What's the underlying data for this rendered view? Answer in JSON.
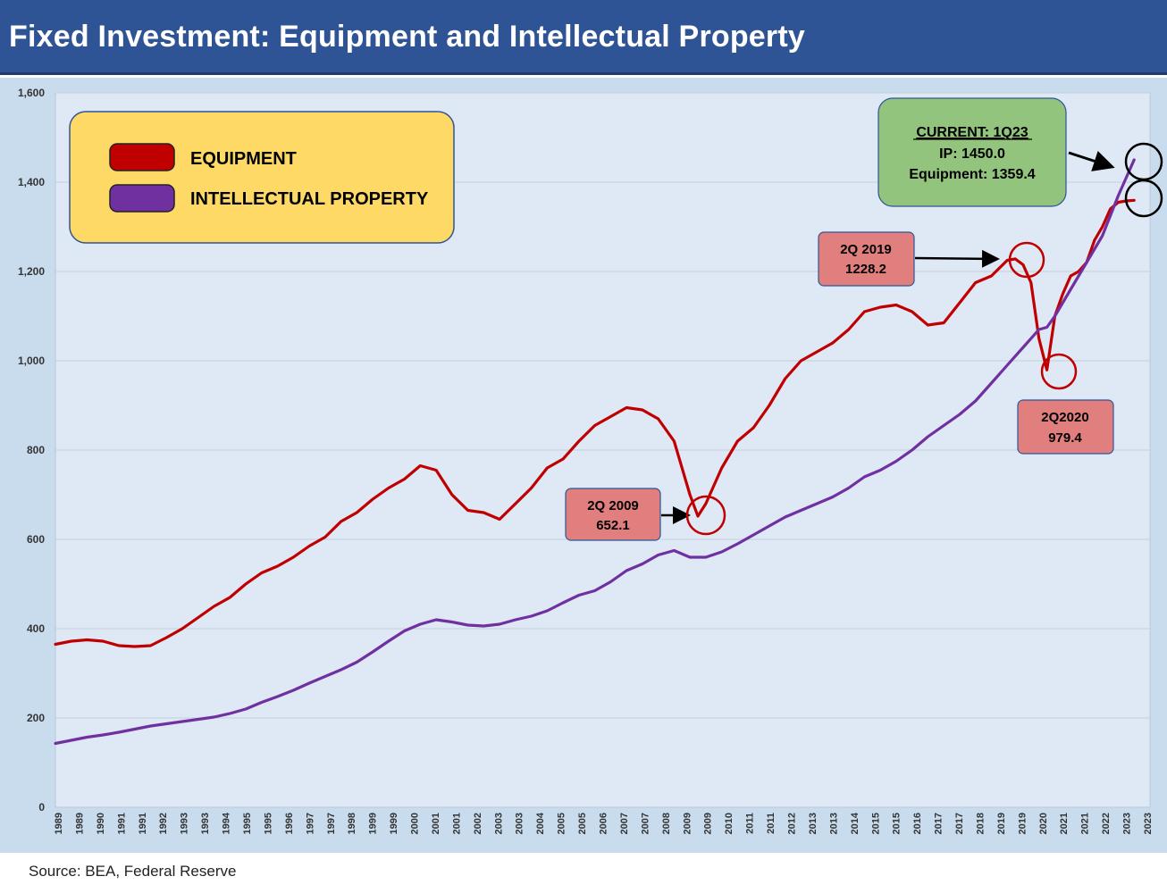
{
  "title": "Fixed Investment: Equipment and Intellectual Property",
  "source": "Source: BEA, Federal Reserve",
  "chart_data": {
    "type": "line",
    "title": "Fixed Investment: Equipment and Intellectual Property",
    "xlabel": "",
    "ylabel": "",
    "ylim": [
      0,
      1600
    ],
    "yticks": [
      "0",
      "200",
      "400",
      "600",
      "800",
      "1,000",
      "1,200",
      "1,400",
      "1,600"
    ],
    "xlim": [
      1989.0,
      2023.5
    ],
    "xticks": [
      "1989",
      "1989",
      "1990",
      "1991",
      "1991",
      "1992",
      "1993",
      "1993",
      "1994",
      "1995",
      "1995",
      "1996",
      "1997",
      "1997",
      "1998",
      "1999",
      "1999",
      "2000",
      "2001",
      "2001",
      "2002",
      "2003",
      "2003",
      "2004",
      "2005",
      "2005",
      "2006",
      "2007",
      "2007",
      "2008",
      "2009",
      "2009",
      "2010",
      "2011",
      "2011",
      "2012",
      "2013",
      "2013",
      "2014",
      "2015",
      "2015",
      "2016",
      "2017",
      "2017",
      "2018",
      "2019",
      "2019",
      "2020",
      "2021",
      "2021",
      "2022",
      "2023",
      "2023"
    ],
    "grid": true,
    "legend_placement": "top-left",
    "series": [
      {
        "name": "EQUIPMENT",
        "color": "#c00000",
        "x": [
          1989.0,
          1989.5,
          1990.0,
          1990.5,
          1991.0,
          1991.5,
          1992.0,
          1992.5,
          1993.0,
          1993.5,
          1994.0,
          1994.5,
          1995.0,
          1995.5,
          1996.0,
          1996.5,
          1997.0,
          1997.5,
          1998.0,
          1998.5,
          1999.0,
          1999.5,
          2000.0,
          2000.5,
          2001.0,
          2001.5,
          2002.0,
          2002.5,
          2003.0,
          2003.5,
          2004.0,
          2004.5,
          2005.0,
          2005.5,
          2006.0,
          2006.5,
          2007.0,
          2007.5,
          2008.0,
          2008.5,
          2009.0,
          2009.25,
          2009.5,
          2010.0,
          2010.5,
          2011.0,
          2011.5,
          2012.0,
          2012.5,
          2013.0,
          2013.5,
          2014.0,
          2014.5,
          2015.0,
          2015.5,
          2016.0,
          2016.5,
          2017.0,
          2017.5,
          2018.0,
          2018.5,
          2019.0,
          2019.25,
          2019.5,
          2019.75,
          2020.0,
          2020.25,
          2020.5,
          2020.75,
          2021.0,
          2021.25,
          2021.5,
          2021.75,
          2022.0,
          2022.25,
          2022.5,
          2022.75,
          2023.0
        ],
        "values": [
          365,
          372,
          375,
          372,
          362,
          360,
          362,
          380,
          400,
          425,
          450,
          470,
          500,
          525,
          540,
          560,
          585,
          605,
          640,
          660,
          690,
          715,
          735,
          765,
          755,
          700,
          665,
          660,
          645,
          680,
          715,
          760,
          780,
          820,
          855,
          875,
          895,
          890,
          870,
          820,
          700,
          652.1,
          680,
          760,
          820,
          850,
          900,
          960,
          1000,
          1020,
          1040,
          1070,
          1110,
          1120,
          1125,
          1110,
          1080,
          1085,
          1130,
          1175,
          1190,
          1225,
          1228.2,
          1215,
          1175,
          1050,
          979.4,
          1100,
          1150,
          1190,
          1200,
          1220,
          1270,
          1300,
          1340,
          1355,
          1358,
          1359.4
        ]
      },
      {
        "name": "INTELLECTUAL PROPERTY",
        "color": "#7030a0",
        "x": [
          1989.0,
          1989.5,
          1990.0,
          1990.5,
          1991.0,
          1991.5,
          1992.0,
          1992.5,
          1993.0,
          1993.5,
          1994.0,
          1994.5,
          1995.0,
          1995.5,
          1996.0,
          1996.5,
          1997.0,
          1997.5,
          1998.0,
          1998.5,
          1999.0,
          1999.5,
          2000.0,
          2000.5,
          2001.0,
          2001.5,
          2002.0,
          2002.5,
          2003.0,
          2003.5,
          2004.0,
          2004.5,
          2005.0,
          2005.5,
          2006.0,
          2006.5,
          2007.0,
          2007.5,
          2008.0,
          2008.5,
          2009.0,
          2009.5,
          2010.0,
          2010.5,
          2011.0,
          2011.5,
          2012.0,
          2012.5,
          2013.0,
          2013.5,
          2014.0,
          2014.5,
          2015.0,
          2015.5,
          2016.0,
          2016.5,
          2017.0,
          2017.5,
          2018.0,
          2018.5,
          2019.0,
          2019.5,
          2020.0,
          2020.25,
          2020.5,
          2021.0,
          2021.5,
          2022.0,
          2022.5,
          2023.0
        ],
        "values": [
          143,
          150,
          157,
          162,
          168,
          175,
          182,
          187,
          192,
          197,
          202,
          210,
          220,
          235,
          248,
          262,
          278,
          293,
          308,
          325,
          348,
          372,
          395,
          410,
          420,
          415,
          408,
          406,
          410,
          420,
          428,
          440,
          458,
          475,
          485,
          505,
          530,
          545,
          565,
          575,
          560,
          560,
          572,
          590,
          610,
          630,
          650,
          665,
          680,
          695,
          715,
          740,
          755,
          775,
          800,
          830,
          855,
          880,
          910,
          950,
          990,
          1030,
          1070,
          1075,
          1100,
          1160,
          1220,
          1280,
          1370,
          1450.0
        ]
      }
    ],
    "annotations": [
      {
        "label": "2Q 2009",
        "value": "652.1",
        "x": 2009.25,
        "y": 652.1,
        "series": "EQUIPMENT"
      },
      {
        "label": "2Q 2019",
        "value": "1228.2",
        "x": 2019.25,
        "y": 1228.2,
        "series": "EQUIPMENT"
      },
      {
        "label": "2Q2020",
        "value": "979.4",
        "x": 2020.25,
        "y": 979.4,
        "series": "EQUIPMENT"
      },
      {
        "heading": "CURRENT: 1Q23",
        "line1": "IP: 1450.0",
        "line2": "Equipment: 1359.4"
      }
    ]
  },
  "colors": {
    "title_bar": "#2f5496",
    "plot_bg": "#dfe9f5",
    "frame_bg": "#c9dcee",
    "legend_bg": "#ffd966",
    "current_box_bg": "#93c47d",
    "callout_bg": "#e17f7f"
  }
}
